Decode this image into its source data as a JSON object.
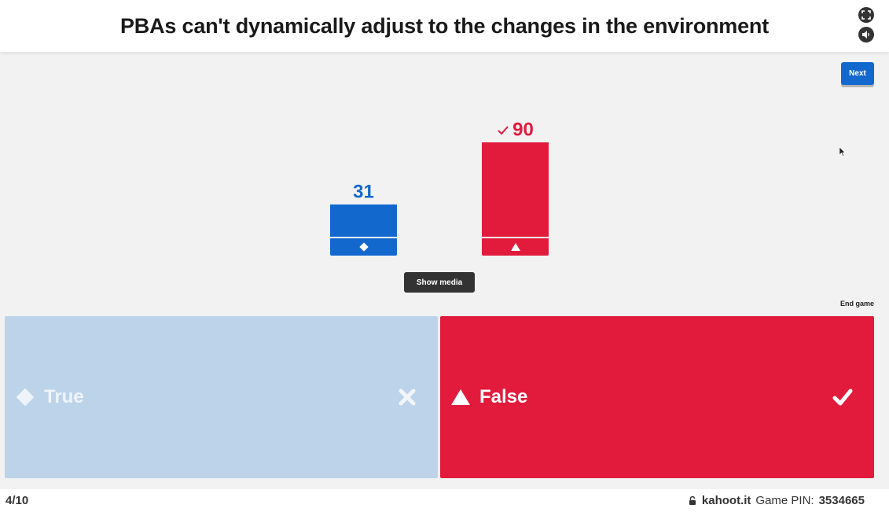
{
  "header": {
    "question": "PBAs can't dynamically adjust to the changes in the environment",
    "icons": [
      "fullscreen-icon",
      "volume-icon"
    ]
  },
  "controls": {
    "next_label": "Next",
    "show_media_label": "Show media",
    "end_game_label": "End game"
  },
  "chart_data": {
    "type": "bar",
    "categories": [
      "True",
      "False"
    ],
    "values": [
      31,
      90
    ],
    "colors": [
      "#1368ce",
      "#e21b3c"
    ],
    "correct": [
      false,
      true
    ],
    "shapes": [
      "diamond",
      "triangle"
    ]
  },
  "answers": [
    {
      "shape": "diamond",
      "label": "True",
      "color": "#bcd3ea",
      "correct": false,
      "result_icon": "cross-icon"
    },
    {
      "shape": "triangle",
      "label": "False",
      "color": "#e21b3c",
      "correct": true,
      "result_icon": "check-icon"
    }
  ],
  "footer": {
    "progress": "4/10",
    "site": "kahoot.it",
    "pin_label": "Game PIN:",
    "pin_value": "3534665"
  },
  "colors": {
    "blue": "#1368ce",
    "red": "#e21b3c",
    "faded_blue": "#bcd3ea",
    "dark": "#333333"
  }
}
